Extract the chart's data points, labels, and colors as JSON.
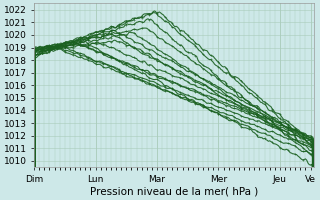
{
  "xlabel": "Pression niveau de la mer( hPa )",
  "background_color": "#cde8e8",
  "grid_color": "#aaccbb",
  "line_color": "#1a6020",
  "ylim": [
    1009.5,
    1022.5
  ],
  "yticks": [
    1010,
    1011,
    1012,
    1013,
    1014,
    1015,
    1016,
    1017,
    1018,
    1019,
    1020,
    1021,
    1022
  ],
  "xtick_labels": [
    "Dim",
    "Lun",
    "Mar",
    "Mer",
    "Jeu",
    "Ve"
  ],
  "xtick_positions": [
    0,
    48,
    96,
    144,
    192,
    216
  ],
  "total_points": 220
}
